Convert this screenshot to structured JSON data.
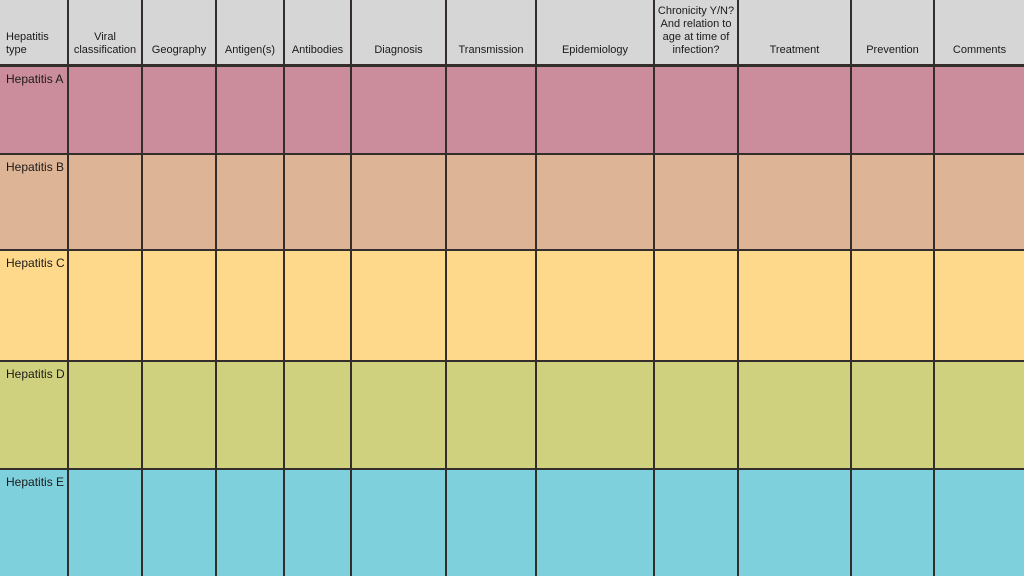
{
  "table": {
    "header_bg": "#d6d6d6",
    "border_color": "#332e2c",
    "text_color": "#1c1a19",
    "columns": [
      {
        "label": "Hepatitis type"
      },
      {
        "label": "Viral classification"
      },
      {
        "label": "Geography"
      },
      {
        "label": "Antigen(s)"
      },
      {
        "label": "Antibodies"
      },
      {
        "label": "Diagnosis"
      },
      {
        "label": "Transmission"
      },
      {
        "label": "Epidemiology"
      },
      {
        "label": "Chronicity Y/N? And relation to age at time of infection?"
      },
      {
        "label": "Treatment"
      },
      {
        "label": "Prevention"
      },
      {
        "label": "Comments"
      }
    ],
    "rows": [
      {
        "label": "Hepatitis A",
        "color": "#cb8d9c",
        "cells": [
          "",
          "",
          "",
          "",
          "",
          "",
          "",
          "",
          "",
          "",
          ""
        ]
      },
      {
        "label": "Hepatitis B",
        "color": "#ddb495",
        "cells": [
          "",
          "",
          "",
          "",
          "",
          "",
          "",
          "",
          "",
          "",
          ""
        ]
      },
      {
        "label": "Hepatitis C",
        "color": "#fed98b",
        "cells": [
          "",
          "",
          "",
          "",
          "",
          "",
          "",
          "",
          "",
          "",
          ""
        ]
      },
      {
        "label": "Hepatitis D",
        "color": "#d0d17e",
        "cells": [
          "",
          "",
          "",
          "",
          "",
          "",
          "",
          "",
          "",
          "",
          ""
        ]
      },
      {
        "label": "Hepatitis E",
        "color": "#7ed0dc",
        "cells": [
          "",
          "",
          "",
          "",
          "",
          "",
          "",
          "",
          "",
          "",
          ""
        ]
      }
    ]
  }
}
